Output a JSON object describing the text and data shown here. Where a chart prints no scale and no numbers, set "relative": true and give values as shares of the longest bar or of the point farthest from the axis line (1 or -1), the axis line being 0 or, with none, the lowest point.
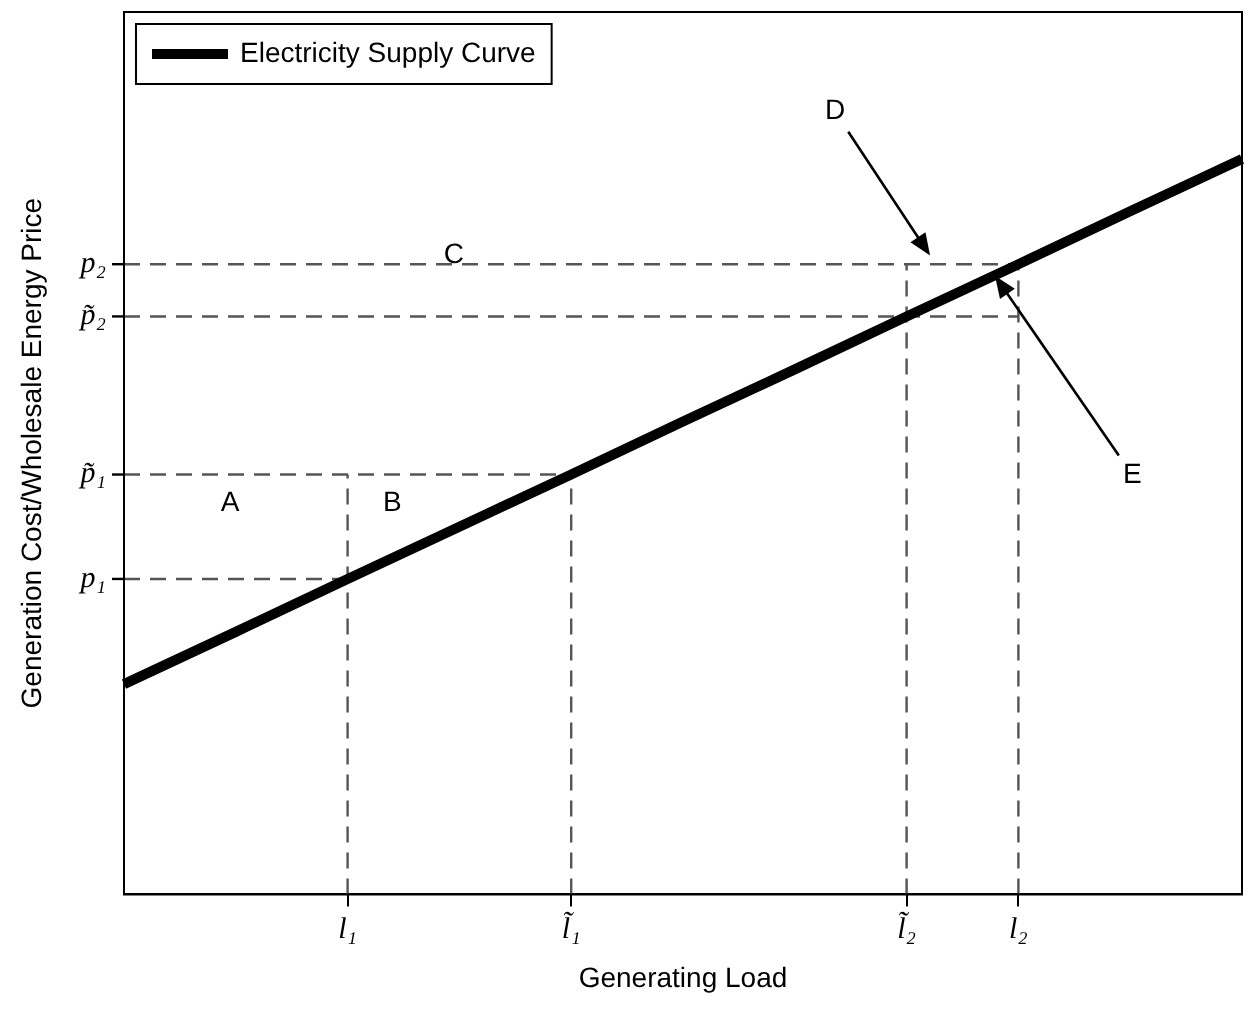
{
  "chart_data": {
    "type": "line",
    "relative": true,
    "xlabel": "Generating Load",
    "ylabel": "Generation Cost/Wholesale Energy Price",
    "categories": [
      null,
      null,
      "l₁",
      null,
      "l̃₁",
      null,
      null,
      "l̃₂",
      "l₂",
      null,
      null
    ],
    "grid": false,
    "legend": "top left",
    "marker": "none",
    "series": [
      {
        "name": "Electricity Supply Curve",
        "color": "#000000",
        "values": [
          0.286,
          0.357,
          0.429,
          0.5,
          0.571,
          0.643,
          0.714,
          0.786,
          0.857,
          0.929,
          1
        ],
        "line_style": "solid"
      }
    ],
    "ref_lines": [
      {
        "axis": "x",
        "value": "l₁",
        "color": "#555555",
        "line_style": "dashed"
      },
      {
        "axis": "x",
        "value": "l̃₁",
        "color": "#555555",
        "line_style": "dashed"
      },
      {
        "axis": "x",
        "value": "l̃₂",
        "color": "#555555",
        "line_style": "dashed"
      },
      {
        "axis": "x",
        "value": "l₂",
        "color": "#555555",
        "line_style": "dashed"
      },
      {
        "axis": "y",
        "value": 0.429,
        "label": "p₁",
        "color": "#555555",
        "line_style": "dashed"
      },
      {
        "axis": "y",
        "value": 0.571,
        "label": "p̃₁",
        "color": "#555555",
        "line_style": "dashed"
      },
      {
        "axis": "y",
        "value": 0.786,
        "label": "p̃₂",
        "color": "#555555",
        "line_style": "dashed"
      },
      {
        "axis": "y",
        "value": 0.857,
        "label": "p₂",
        "color": "#555555",
        "line_style": "dashed"
      }
    ],
    "annotations": [
      "A",
      "B",
      "C",
      "D",
      "E"
    ]
  }
}
